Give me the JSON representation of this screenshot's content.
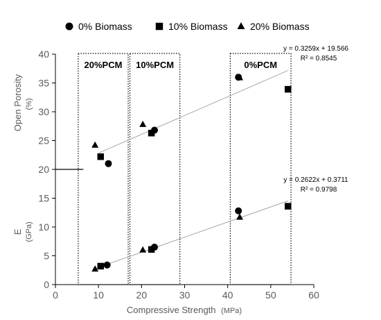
{
  "chart_data": {
    "type": "scatter",
    "xlabel": "Compressive Strength",
    "xlabel_unit": "(MPa)",
    "ylabel_top": "Open Porosity",
    "ylabel_top_unit": "(%)",
    "ylabel_bottom": "E",
    "ylabel_bottom_unit": "(GPa)",
    "xlim": [
      0,
      60
    ],
    "ylim": [
      0,
      40
    ],
    "x_ticks": [
      "0",
      "10",
      "20",
      "30",
      "40",
      "50",
      "60"
    ],
    "y_ticks": [
      "0",
      "5",
      "10",
      "15",
      "20",
      "25",
      "30",
      "35",
      "40"
    ],
    "legend_position": "top",
    "series": [
      {
        "name": "0%   Biomass",
        "marker": "circle",
        "color": "#000000",
        "porosity_points": [
          [
            12.3,
            21.0
          ],
          [
            23.0,
            26.8
          ],
          [
            42.5,
            36.0
          ]
        ],
        "modulus_points": [
          [
            12.0,
            3.4
          ],
          [
            23.0,
            6.5
          ],
          [
            42.5,
            12.8
          ]
        ]
      },
      {
        "name": "10% Biomass",
        "marker": "square",
        "color": "#000000",
        "porosity_points": [
          [
            10.5,
            22.2
          ],
          [
            22.3,
            26.3
          ],
          [
            54.0,
            33.9
          ]
        ],
        "modulus_points": [
          [
            10.5,
            3.2
          ],
          [
            22.3,
            6.1
          ],
          [
            54.0,
            13.6
          ]
        ]
      },
      {
        "name": "20% Biomass",
        "marker": "triangle",
        "color": "#000000",
        "porosity_points": [
          [
            9.2,
            24.2
          ],
          [
            20.3,
            27.8
          ],
          [
            42.8,
            35.9
          ]
        ],
        "modulus_points": [
          [
            9.2,
            2.7
          ],
          [
            20.3,
            6.0
          ],
          [
            42.8,
            11.7
          ]
        ]
      }
    ],
    "trendlines": [
      {
        "slope": 0.3259,
        "intercept": 19.566,
        "x_range": [
          10,
          54
        ],
        "color": "#a6a6a6",
        "equation": "y = 0.3259x + 19.566",
        "r2": "R² = 0.8545"
      },
      {
        "slope": 0.2622,
        "intercept": 0.3711,
        "x_range": [
          9,
          54
        ],
        "color": "#a6a6a6",
        "equation": "y = 0.2622x + 0.3711",
        "r2": "R² = 0.9798"
      }
    ],
    "regions": [
      {
        "label": "20%PCM",
        "x_range": [
          5.3,
          16.9
        ]
      },
      {
        "label": "10%PCM",
        "x_range": [
          17.3,
          28.9
        ]
      },
      {
        "label": "0%PCM",
        "x_range": [
          40.6,
          54.7
        ]
      }
    ],
    "grid": false
  }
}
